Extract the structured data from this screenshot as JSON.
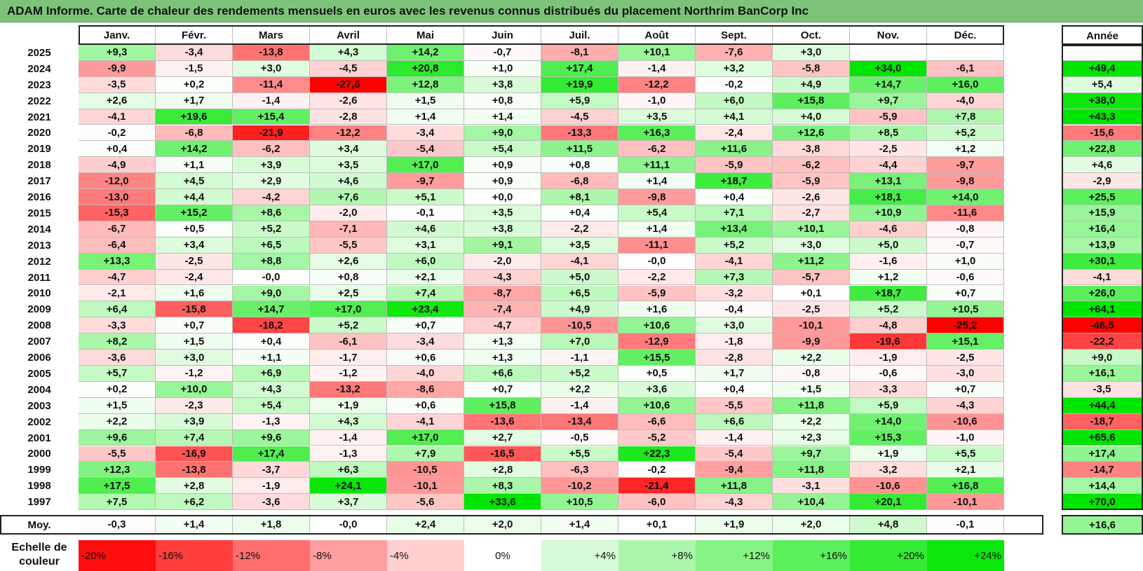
{
  "title": "ADAM Informe. Carte de chaleur des rendements mensuels en euros avec les revenus connus distribués du placement Northrim BanCorp Inc",
  "chart_data": {
    "type": "heatmap",
    "columns": [
      "Janv.",
      "Févr.",
      "Mars",
      "Avril",
      "Mai",
      "Juin",
      "Juil.",
      "Août",
      "Sept.",
      "Oct.",
      "Nov.",
      "Déc."
    ],
    "year_header": "Année",
    "rows": [
      {
        "year": "2025",
        "months": [
          "+9,3",
          "-3,4",
          "-13,8",
          "+4,3",
          "+14,2",
          "-0,7",
          "-8,1",
          "+10,1",
          "-7,6",
          "+3,0",
          "",
          ""
        ],
        "annual": ""
      },
      {
        "year": "2024",
        "months": [
          "-9,9",
          "-1,5",
          "+3,0",
          "-4,5",
          "+20,8",
          "+1,0",
          "+17,4",
          "-1,4",
          "+3,2",
          "-5,8",
          "+34,0",
          "-6,1"
        ],
        "annual": "+49,4"
      },
      {
        "year": "2023",
        "months": [
          "-3,5",
          "+0,2",
          "-11,4",
          "-27,6",
          "+12,8",
          "+3,8",
          "+19,9",
          "-12,2",
          "-0,2",
          "+4,9",
          "+14,7",
          "+16,0"
        ],
        "annual": "+5,4"
      },
      {
        "year": "2022",
        "months": [
          "+2,6",
          "+1,7",
          "-1,4",
          "-2,6",
          "+1,5",
          "+0,8",
          "+5,9",
          "-1,0",
          "+6,0",
          "+15,8",
          "+9,7",
          "-4,0"
        ],
        "annual": "+38,0"
      },
      {
        "year": "2021",
        "months": [
          "-4,1",
          "+19,6",
          "+15,4",
          "-2,8",
          "+1,4",
          "+1,4",
          "-4,5",
          "+3,5",
          "+4,1",
          "+4,0",
          "-5,9",
          "+7,8"
        ],
        "annual": "+43,3"
      },
      {
        "year": "2020",
        "months": [
          "-0,2",
          "-6,8",
          "-21,9",
          "-12,2",
          "-3,4",
          "+9,0",
          "-13,3",
          "+16,3",
          "-2,4",
          "+12,6",
          "+8,5",
          "+5,2"
        ],
        "annual": "-15,6"
      },
      {
        "year": "2019",
        "months": [
          "+0,4",
          "+14,2",
          "-6,2",
          "+3,4",
          "-5,4",
          "+5,4",
          "+11,5",
          "-6,2",
          "+11,6",
          "-3,8",
          "-2,5",
          "+1,2"
        ],
        "annual": "+22,8"
      },
      {
        "year": "2018",
        "months": [
          "-4,9",
          "+1,1",
          "+3,9",
          "+3,5",
          "+17,0",
          "+0,9",
          "+0,8",
          "+11,1",
          "-5,9",
          "-6,2",
          "-4,4",
          "-9,7"
        ],
        "annual": "+4,6"
      },
      {
        "year": "2017",
        "months": [
          "-12,0",
          "+4,5",
          "+2,9",
          "+4,6",
          "-9,7",
          "+0,9",
          "-6,8",
          "+1,4",
          "+18,7",
          "-5,9",
          "+13,1",
          "-9,8"
        ],
        "annual": "-2,9"
      },
      {
        "year": "2016",
        "months": [
          "-13,0",
          "+4,4",
          "-4,2",
          "+7,6",
          "+5,1",
          "+0,0",
          "+8,1",
          "-9,8",
          "+0,4",
          "-2,6",
          "+18,1",
          "+14,0"
        ],
        "annual": "+25,5"
      },
      {
        "year": "2015",
        "months": [
          "-15,3",
          "+15,2",
          "+8,6",
          "-2,0",
          "-0,1",
          "+3,5",
          "+0,4",
          "+5,4",
          "+7,1",
          "-2,7",
          "+10,9",
          "-11,6"
        ],
        "annual": "+15,9"
      },
      {
        "year": "2014",
        "months": [
          "-6,7",
          "+0,5",
          "+5,2",
          "-7,1",
          "+4,6",
          "+3,8",
          "-2,2",
          "+1,4",
          "+13,4",
          "+10,1",
          "-4,6",
          "-0,8"
        ],
        "annual": "+16,4"
      },
      {
        "year": "2013",
        "months": [
          "-6,4",
          "+3,4",
          "+6,5",
          "-5,5",
          "+3,1",
          "+9,1",
          "+3,5",
          "-11,1",
          "+5,2",
          "+3,0",
          "+5,0",
          "-0,7"
        ],
        "annual": "+13,9"
      },
      {
        "year": "2012",
        "months": [
          "+13,3",
          "-2,5",
          "+8,8",
          "+2,6",
          "+6,0",
          "-2,0",
          "-4,1",
          "-0,0",
          "-4,1",
          "+11,2",
          "-1,6",
          "+1,0"
        ],
        "annual": "+30,1"
      },
      {
        "year": "2011",
        "months": [
          "-4,7",
          "-2,4",
          "-0,0",
          "+0,8",
          "+2,1",
          "-4,3",
          "+5,0",
          "-2,2",
          "+7,3",
          "-5,7",
          "+1,2",
          "-0,6"
        ],
        "annual": "-4,1"
      },
      {
        "year": "2010",
        "months": [
          "-2,1",
          "+1,6",
          "+9,0",
          "+2,5",
          "+7,4",
          "-8,7",
          "+6,5",
          "-5,9",
          "-3,2",
          "+0,1",
          "+18,7",
          "+0,7"
        ],
        "annual": "+26,0"
      },
      {
        "year": "2009",
        "months": [
          "+6,4",
          "-15,8",
          "+14,7",
          "+17,0",
          "+23,4",
          "-7,4",
          "+4,9",
          "+1,6",
          "-0,4",
          "-2,5",
          "+5,2",
          "+10,5"
        ],
        "annual": "+64,1"
      },
      {
        "year": "2008",
        "months": [
          "-3,3",
          "+0,7",
          "-18,2",
          "+5,2",
          "+0,7",
          "-4,7",
          "-10,5",
          "+10,6",
          "+3,0",
          "-10,1",
          "-4,8",
          "-25,2"
        ],
        "annual": "-46,5"
      },
      {
        "year": "2007",
        "months": [
          "+8,2",
          "+1,5",
          "+0,4",
          "-6,1",
          "-3,4",
          "+1,3",
          "+7,0",
          "-12,9",
          "-1,8",
          "-9,9",
          "-19,6",
          "+15,1"
        ],
        "annual": "-22,2"
      },
      {
        "year": "2006",
        "months": [
          "-3,6",
          "+3,0",
          "+1,1",
          "-1,7",
          "+0,6",
          "+1,3",
          "-1,1",
          "+15,5",
          "-2,8",
          "+2,2",
          "-1,9",
          "-2,5"
        ],
        "annual": "+9,0"
      },
      {
        "year": "2005",
        "months": [
          "+5,7",
          "-1,2",
          "+6,9",
          "-1,2",
          "-4,0",
          "+6,6",
          "+5,2",
          "+0,5",
          "+1,7",
          "-0,8",
          "-0,6",
          "-3,0"
        ],
        "annual": "+16,1"
      },
      {
        "year": "2004",
        "months": [
          "+0,2",
          "+10,0",
          "+4,3",
          "-13,2",
          "-8,6",
          "+0,7",
          "+2,2",
          "+3,6",
          "+0,4",
          "+1,5",
          "-3,3",
          "+0,7"
        ],
        "annual": "-3,5"
      },
      {
        "year": "2003",
        "months": [
          "+1,5",
          "-2,3",
          "+5,4",
          "+1,9",
          "+0,6",
          "+15,8",
          "-1,4",
          "+10,6",
          "-5,5",
          "+11,8",
          "+5,9",
          "-4,3"
        ],
        "annual": "+44,4"
      },
      {
        "year": "2002",
        "months": [
          "+2,2",
          "+3,9",
          "-1,3",
          "+4,3",
          "-4,1",
          "-13,6",
          "-13,4",
          "-6,6",
          "+6,6",
          "+2,2",
          "+14,0",
          "-10,6"
        ],
        "annual": "-18,7"
      },
      {
        "year": "2001",
        "months": [
          "+9,6",
          "+7,4",
          "+9,6",
          "-1,4",
          "+17,0",
          "+2,7",
          "-0,5",
          "-5,2",
          "-1,4",
          "+2,3",
          "+15,3",
          "-1,0"
        ],
        "annual": "+65,6"
      },
      {
        "year": "2000",
        "months": [
          "-5,5",
          "-16,9",
          "+17,4",
          "-1,3",
          "+7,9",
          "-16,5",
          "+5,5",
          "+22,3",
          "-5,4",
          "+9,7",
          "+1,9",
          "+5,5"
        ],
        "annual": "+17,4"
      },
      {
        "year": "1999",
        "months": [
          "+12,3",
          "-13,8",
          "-3,7",
          "+6,3",
          "-10,5",
          "+2,8",
          "-6,3",
          "-0,2",
          "-9,4",
          "+11,8",
          "-3,2",
          "+2,1"
        ],
        "annual": "-14,7"
      },
      {
        "year": "1998",
        "months": [
          "+17,5",
          "+2,8",
          "-1,9",
          "+24,1",
          "-10,1",
          "+8,3",
          "-10,2",
          "-21,4",
          "+11,8",
          "-3,1",
          "-10,6",
          "+16,8"
        ],
        "annual": "+14,4"
      },
      {
        "year": "1997",
        "months": [
          "+7,5",
          "+6,2",
          "-3,6",
          "+3,7",
          "-5,6",
          "+33,6",
          "+10,5",
          "-6,0",
          "-4,3",
          "+10,4",
          "+20,1",
          "-10,1"
        ],
        "annual": "+70,0"
      }
    ],
    "average": {
      "label": "Moy.",
      "months": [
        "-0,3",
        "+1,4",
        "+1,8",
        "-0,0",
        "+2,4",
        "+2,0",
        "+1,4",
        "+0,1",
        "+1,9",
        "+2,0",
        "+4,8",
        "-0,1"
      ],
      "annual": "+16,6"
    },
    "scale": {
      "label_line1": "Echelle de",
      "label_line2": "couleur",
      "steps": [
        "-20%",
        "-16%",
        "-12%",
        "-8%",
        "-4%",
        "0%",
        "+4%",
        "+8%",
        "+12%",
        "+16%",
        "+20%",
        "+24%"
      ]
    },
    "colors": {
      "negative": "#ff0000",
      "neutral": "#ffffff",
      "positive": "#00e600"
    }
  }
}
